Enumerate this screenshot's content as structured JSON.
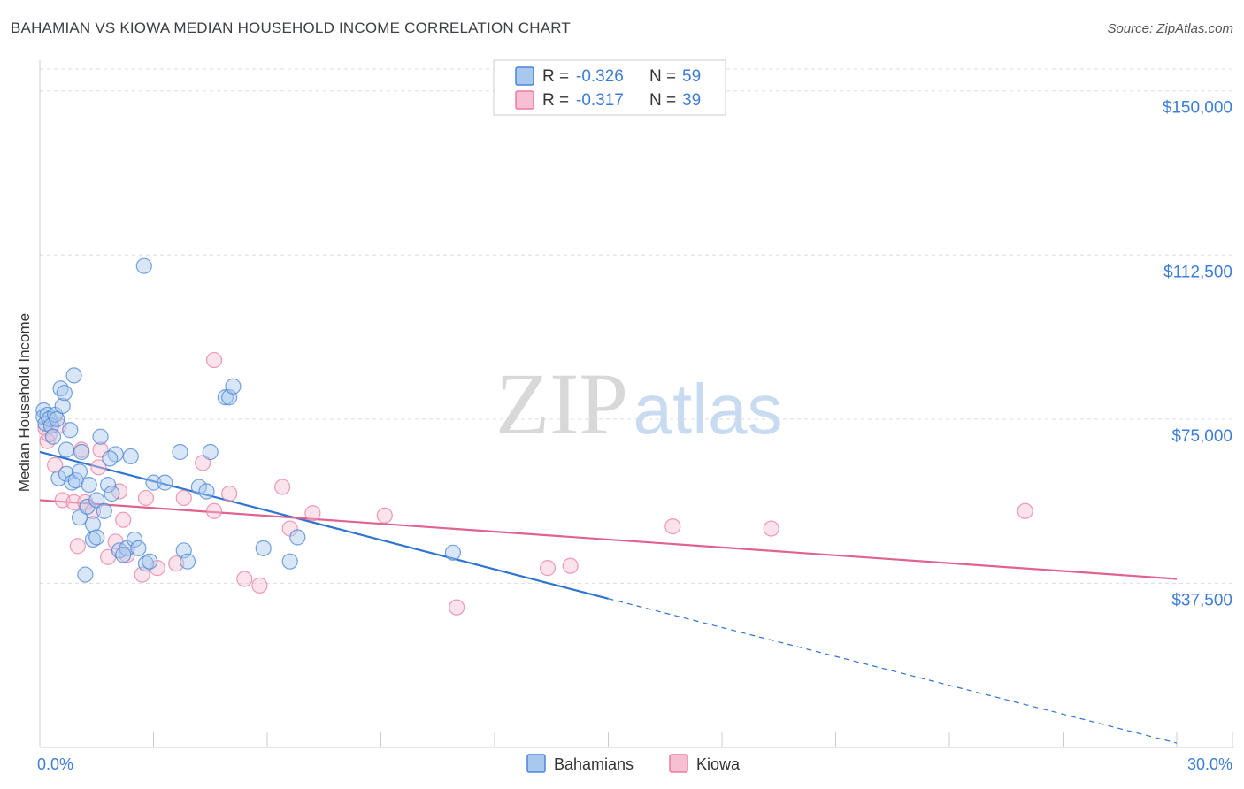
{
  "title": "BAHAMIAN VS KIOWA MEDIAN HOUSEHOLD INCOME CORRELATION CHART",
  "source": "Source: ZipAtlas.com",
  "watermark": {
    "zip": "ZIP",
    "atlas": "atlas"
  },
  "colors": {
    "bahamians": "#4a86d6",
    "bahamians_fill": "#a9c8ee",
    "kiowa": "#e87ba0",
    "kiowa_fill": "#f6bfd2",
    "axis_label": "#3d7dd8",
    "grid": "#dddddd"
  },
  "legend_box": [
    {
      "r_label": "R =",
      "r_value": "-0.326",
      "n_label": "N =",
      "n_value": "59"
    },
    {
      "r_label": "R =",
      "r_value": "-0.317",
      "n_label": "N =",
      "n_value": "39"
    }
  ],
  "chart_data": {
    "type": "scatter",
    "ylabel": "Median Household Income",
    "xlim": [
      0,
      30
    ],
    "ylim": [
      0,
      155000
    ],
    "x_tick_labels": [
      "0.0%",
      "30.0%"
    ],
    "y_ticks": [
      37500,
      75000,
      112500,
      150000
    ],
    "y_tick_labels": [
      "$37,500",
      "$75,000",
      "$112,500",
      "$150,000"
    ],
    "grid": "horizontal dashed",
    "legend_position": "bottom-center",
    "series": [
      {
        "name": "Bahamians",
        "points": [
          [
            0.1,
            77000
          ],
          [
            0.1,
            75500
          ],
          [
            0.15,
            74000
          ],
          [
            0.2,
            76000
          ],
          [
            0.25,
            75000
          ],
          [
            0.3,
            73500
          ],
          [
            0.4,
            76000
          ],
          [
            0.45,
            75000
          ],
          [
            0.35,
            71000
          ],
          [
            0.55,
            82000
          ],
          [
            0.6,
            78000
          ],
          [
            0.65,
            81000
          ],
          [
            0.7,
            68000
          ],
          [
            0.8,
            72500
          ],
          [
            0.9,
            85000
          ],
          [
            0.5,
            61500
          ],
          [
            0.7,
            62500
          ],
          [
            0.85,
            60500
          ],
          [
            0.95,
            61000
          ],
          [
            1.05,
            63000
          ],
          [
            1.1,
            67500
          ],
          [
            1.3,
            60000
          ],
          [
            1.05,
            52500
          ],
          [
            1.25,
            55000
          ],
          [
            1.4,
            51000
          ],
          [
            1.5,
            56500
          ],
          [
            1.6,
            71000
          ],
          [
            1.7,
            54000
          ],
          [
            1.8,
            60000
          ],
          [
            1.2,
            39500
          ],
          [
            1.4,
            47500
          ],
          [
            1.5,
            48000
          ],
          [
            1.9,
            58000
          ],
          [
            2.0,
            67000
          ],
          [
            2.4,
            66500
          ],
          [
            1.85,
            66000
          ],
          [
            2.1,
            45000
          ],
          [
            2.3,
            45500
          ],
          [
            2.5,
            47500
          ],
          [
            2.6,
            45500
          ],
          [
            2.8,
            42000
          ],
          [
            3.0,
            60500
          ],
          [
            3.3,
            60500
          ],
          [
            2.75,
            110000
          ],
          [
            2.9,
            42500
          ],
          [
            3.7,
            67500
          ],
          [
            3.8,
            45000
          ],
          [
            3.9,
            42500
          ],
          [
            4.2,
            59500
          ],
          [
            4.4,
            58500
          ],
          [
            4.5,
            67500
          ],
          [
            4.9,
            80000
          ],
          [
            5.0,
            80000
          ],
          [
            5.1,
            82500
          ],
          [
            5.9,
            45500
          ],
          [
            6.6,
            42500
          ],
          [
            6.8,
            48000
          ],
          [
            10.9,
            44500
          ],
          [
            2.2,
            44000
          ]
        ]
      },
      {
        "name": "Kiowa",
        "points": [
          [
            0.15,
            73000
          ],
          [
            0.2,
            70000
          ],
          [
            0.25,
            71500
          ],
          [
            0.4,
            64500
          ],
          [
            0.5,
            73500
          ],
          [
            0.6,
            56500
          ],
          [
            0.9,
            56000
          ],
          [
            1.0,
            46000
          ],
          [
            1.1,
            68000
          ],
          [
            1.2,
            56000
          ],
          [
            1.4,
            54000
          ],
          [
            1.55,
            64000
          ],
          [
            1.6,
            68000
          ],
          [
            1.8,
            43500
          ],
          [
            2.0,
            47000
          ],
          [
            2.1,
            58500
          ],
          [
            2.2,
            52000
          ],
          [
            2.3,
            44000
          ],
          [
            2.7,
            39500
          ],
          [
            2.8,
            57000
          ],
          [
            3.1,
            41000
          ],
          [
            3.6,
            42000
          ],
          [
            3.8,
            57000
          ],
          [
            4.3,
            65000
          ],
          [
            4.6,
            54000
          ],
          [
            4.6,
            88500
          ],
          [
            5.0,
            58000
          ],
          [
            5.4,
            38500
          ],
          [
            5.8,
            37000
          ],
          [
            6.4,
            59500
          ],
          [
            6.6,
            50000
          ],
          [
            7.2,
            53500
          ],
          [
            9.1,
            53000
          ],
          [
            11.0,
            32000
          ],
          [
            13.4,
            41000
          ],
          [
            14.0,
            41500
          ],
          [
            16.7,
            50500
          ],
          [
            19.3,
            50000
          ],
          [
            26.0,
            54000
          ]
        ]
      }
    ],
    "trend_lines": [
      {
        "name": "Bahamians",
        "x": [
          0,
          15
        ],
        "y": [
          67500,
          34000
        ],
        "dashed_extension_x": [
          15,
          30
        ],
        "dashed_extension_y": [
          34000,
          1000
        ]
      },
      {
        "name": "Kiowa",
        "x": [
          0,
          30
        ],
        "y": [
          56500,
          38500
        ]
      }
    ]
  }
}
